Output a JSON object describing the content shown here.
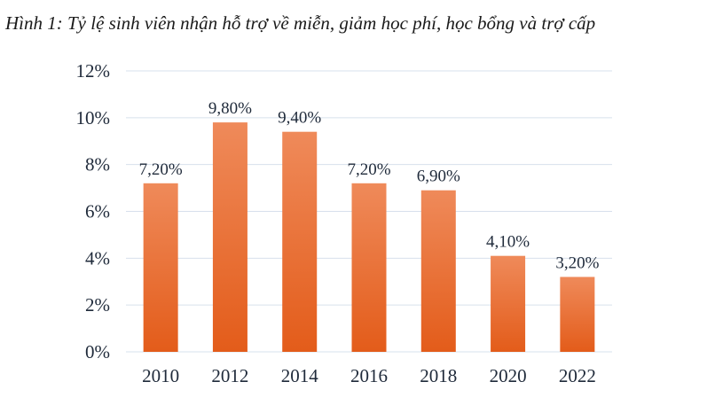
{
  "figure": {
    "caption_label": "Hình 1:",
    "caption_text": " Tỷ lệ sinh viên nhận hỗ trợ về miễn, giảm học phí, học bổng và trợ cấp"
  },
  "chart_data": {
    "type": "bar",
    "title": "Hình 1: Tỷ lệ sinh viên nhận hỗ trợ về miễn, giảm học phí, học bổng và trợ cấp",
    "xlabel": "",
    "ylabel": "",
    "categories": [
      "2010",
      "2012",
      "2014",
      "2016",
      "2018",
      "2020",
      "2022"
    ],
    "values": [
      7.2,
      9.8,
      9.4,
      7.2,
      6.9,
      4.1,
      3.2
    ],
    "data_labels": [
      "7,20%",
      "9,80%",
      "9,40%",
      "7,20%",
      "6,90%",
      "4,10%",
      "3,20%"
    ],
    "ylim": [
      0,
      12
    ],
    "yticks": [
      0,
      2,
      4,
      6,
      8,
      10,
      12
    ],
    "ytick_labels": [
      "0%",
      "2%",
      "4%",
      "6%",
      "8%",
      "10%",
      "12%"
    ],
    "grid": true,
    "legend": "none",
    "colors": {
      "bar_top": "#ef8a5a",
      "bar_bottom": "#e35c1a",
      "grid": "#d7e0ec",
      "text": "#1f2a3a"
    }
  }
}
